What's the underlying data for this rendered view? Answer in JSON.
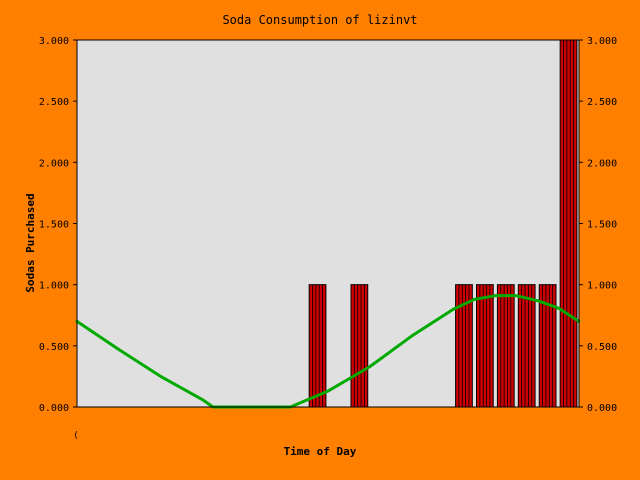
{
  "chart_data": {
    "type": "bar",
    "title": "Soda Consumption of lizinvt",
    "xlabel": "Time of Day",
    "ylabel": "Sodas Purchased",
    "ylim": [
      0,
      3
    ],
    "xlim": [
      0,
      24
    ],
    "yticks": [
      "0.000",
      "0.500",
      "1.000",
      "1.500",
      "2.000",
      "2.500",
      "3.000"
    ],
    "ytick_values": [
      0,
      0.5,
      1,
      1.5,
      2,
      2.5,
      3
    ],
    "x_tick_labels": [
      "("
    ],
    "grid": false,
    "plot_background": "#e0e0e0",
    "page_background": "#ff8000",
    "bar_color": "#cc0000",
    "line_color": "#00aa00",
    "bars": [
      {
        "x": 11.5,
        "value": 1
      },
      {
        "x": 13.5,
        "value": 1
      },
      {
        "x": 18.5,
        "value": 1
      },
      {
        "x": 19.5,
        "value": 1
      },
      {
        "x": 20.5,
        "value": 1
      },
      {
        "x": 21.5,
        "value": 1
      },
      {
        "x": 22.5,
        "value": 1
      },
      {
        "x": 23.5,
        "value": 3
      }
    ],
    "line_series": {
      "x": [
        0,
        2,
        4,
        6,
        6.5,
        8,
        10,
        10.2,
        12,
        14,
        16,
        18,
        19,
        20,
        21,
        22,
        23,
        24
      ],
      "y": [
        0.7,
        0.47,
        0.25,
        0.06,
        0.0,
        0.0,
        0.0,
        0.0,
        0.13,
        0.33,
        0.58,
        0.8,
        0.88,
        0.91,
        0.91,
        0.87,
        0.81,
        0.7
      ]
    }
  }
}
